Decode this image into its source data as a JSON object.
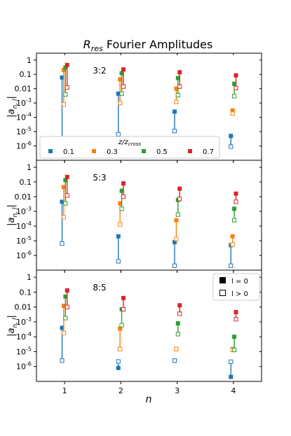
{
  "chart_data": {
    "type": "scatter",
    "title": "R_res Fourier Amplitudes",
    "title_main": "R",
    "title_sub": "res",
    "title_rest": " Fourier Amplitudes",
    "xlabel": "n",
    "ylabel_main": "|a",
    "ylabel_sub": "n, l",
    "ylabel_end": "|",
    "x_ticks": [
      "1",
      "2",
      "3",
      "4"
    ],
    "xlim": [
      0.5,
      4.5
    ],
    "y_scale": "log",
    "ylim": [
      1e-07,
      3
    ],
    "y_ticks": [
      {
        "value": 1,
        "label": "1"
      },
      {
        "value": 0.1,
        "label": "0.1"
      },
      {
        "value": 0.01,
        "label": "0.01"
      },
      {
        "value": 0.001,
        "label": "10",
        "exp": "-3"
      },
      {
        "value": 0.0001,
        "label": "10",
        "exp": "-4"
      },
      {
        "value": 1e-05,
        "label": "10",
        "exp": "-5"
      },
      {
        "value": 1e-06,
        "label": "10",
        "exp": "-6"
      }
    ],
    "series_colors": [
      "#1f77b4",
      "#ff7f0e",
      "#2ca02c",
      "#d62728"
    ],
    "series_offsets": [
      -0.045,
      -0.015,
      0.015,
      0.045
    ],
    "z_legend": {
      "title_main": "z/z",
      "title_sub": "cross",
      "entries": [
        "0.1",
        "0.3",
        "0.5",
        "0.7"
      ]
    },
    "marker_legend": {
      "filled_label": "l = 0",
      "open_label": "l > 0"
    },
    "panels": [
      {
        "label": "3:2",
        "series": [
          {
            "name": "0.1",
            "l0": [
              0.06,
              0.0045,
              0.00025,
              5e-06
            ],
            "lgt0": [
              2.8e-06,
              6.5e-06,
              1.1e-05,
              9e-07
            ]
          },
          {
            "name": "0.3",
            "l0": [
              0.2,
              0.045,
              0.01,
              0.0003
            ],
            "lgt0": [
              0.0008,
              0.001,
              0.0012,
              0.00018
            ]
          },
          {
            "name": "0.5",
            "l0": [
              0.3,
              0.12,
              0.055,
              0.022
            ],
            "lgt0": [
              0.004,
              0.0045,
              0.0035,
              0.003
            ]
          },
          {
            "name": "0.7",
            "l0": [
              0.45,
              0.22,
              0.14,
              0.085
            ],
            "lgt0": [
              0.012,
              0.014,
              0.014,
              0.011
            ]
          }
        ]
      },
      {
        "label": "5:3",
        "series": [
          {
            "name": "0.1",
            "l0": [
              0.0045,
              2e-05,
              8e-06,
              5e-06
            ],
            "lgt0": [
              6.5e-06,
              4e-07,
              2e-07,
              2e-07
            ]
          },
          {
            "name": "0.3",
            "l0": [
              0.045,
              0.0035,
              0.00025,
              2e-05
            ],
            "lgt0": [
              0.0004,
              0.00013,
              1.3e-05,
              5.5e-06
            ]
          },
          {
            "name": "0.5",
            "l0": [
              0.13,
              0.025,
              0.006,
              0.0015
            ],
            "lgt0": [
              0.0035,
              0.0015,
              0.0006,
              0.00025
            ]
          },
          {
            "name": "0.7",
            "l0": [
              0.22,
              0.08,
              0.035,
              0.016
            ],
            "lgt0": [
              0.012,
              0.01,
              0.007,
              0.0045
            ]
          }
        ]
      },
      {
        "label": "8:5",
        "series": [
          {
            "name": "0.1",
            "l0": [
              0.0004,
              8e-07,
              2.5e-06,
              2e-07
            ],
            "lgt0": [
              2.5e-06,
              2.2e-06,
              2.5e-06,
              2.1e-06
            ]
          },
          {
            "name": "0.3",
            "l0": [
              0.012,
              0.00035,
              1.5e-05,
              1.5e-05
            ],
            "lgt0": [
              0.00018,
              1.5e-05,
              1.5e-05,
              1.3e-05
            ]
          },
          {
            "name": "0.5",
            "l0": [
              0.05,
              0.007,
              0.0008,
              0.0001
            ],
            "lgt0": [
              0.0018,
              0.0006,
              0.00015,
              1.3e-05
            ]
          },
          {
            "name": "0.7",
            "l0": [
              0.13,
              0.04,
              0.013,
              0.0045
            ],
            "lgt0": [
              0.01,
              0.007,
              0.0035,
              0.0015
            ]
          }
        ]
      }
    ]
  }
}
